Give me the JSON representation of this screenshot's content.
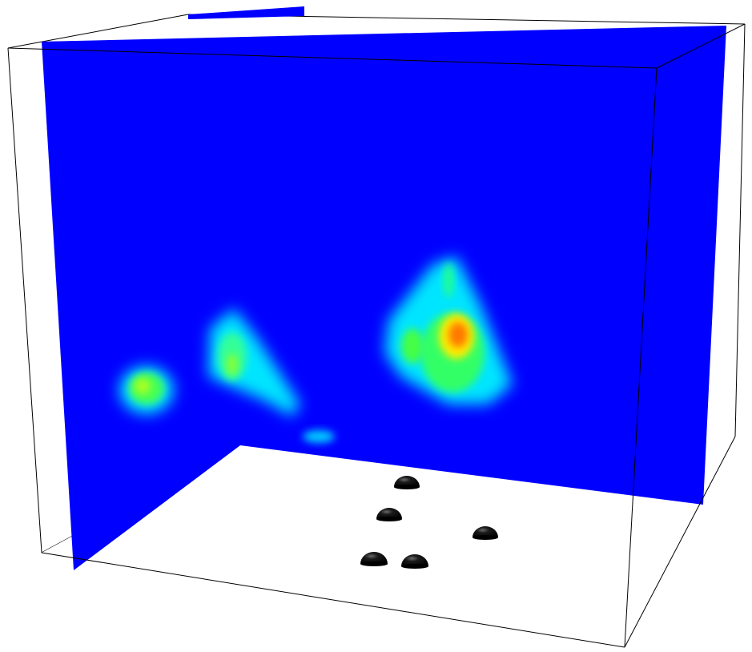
{
  "scene": {
    "background_color": "#ffffff",
    "box_edge_color": "#000000",
    "slice_colormap": [
      "#0000ff",
      "#00e5ff",
      "#33ff66",
      "#ffff00",
      "#ff8800",
      "#ff2200"
    ],
    "slice_base_color": "#0000ff",
    "hotspot_count": 5,
    "floor_marker_count": 5,
    "floor_marker_color": "#000000"
  }
}
